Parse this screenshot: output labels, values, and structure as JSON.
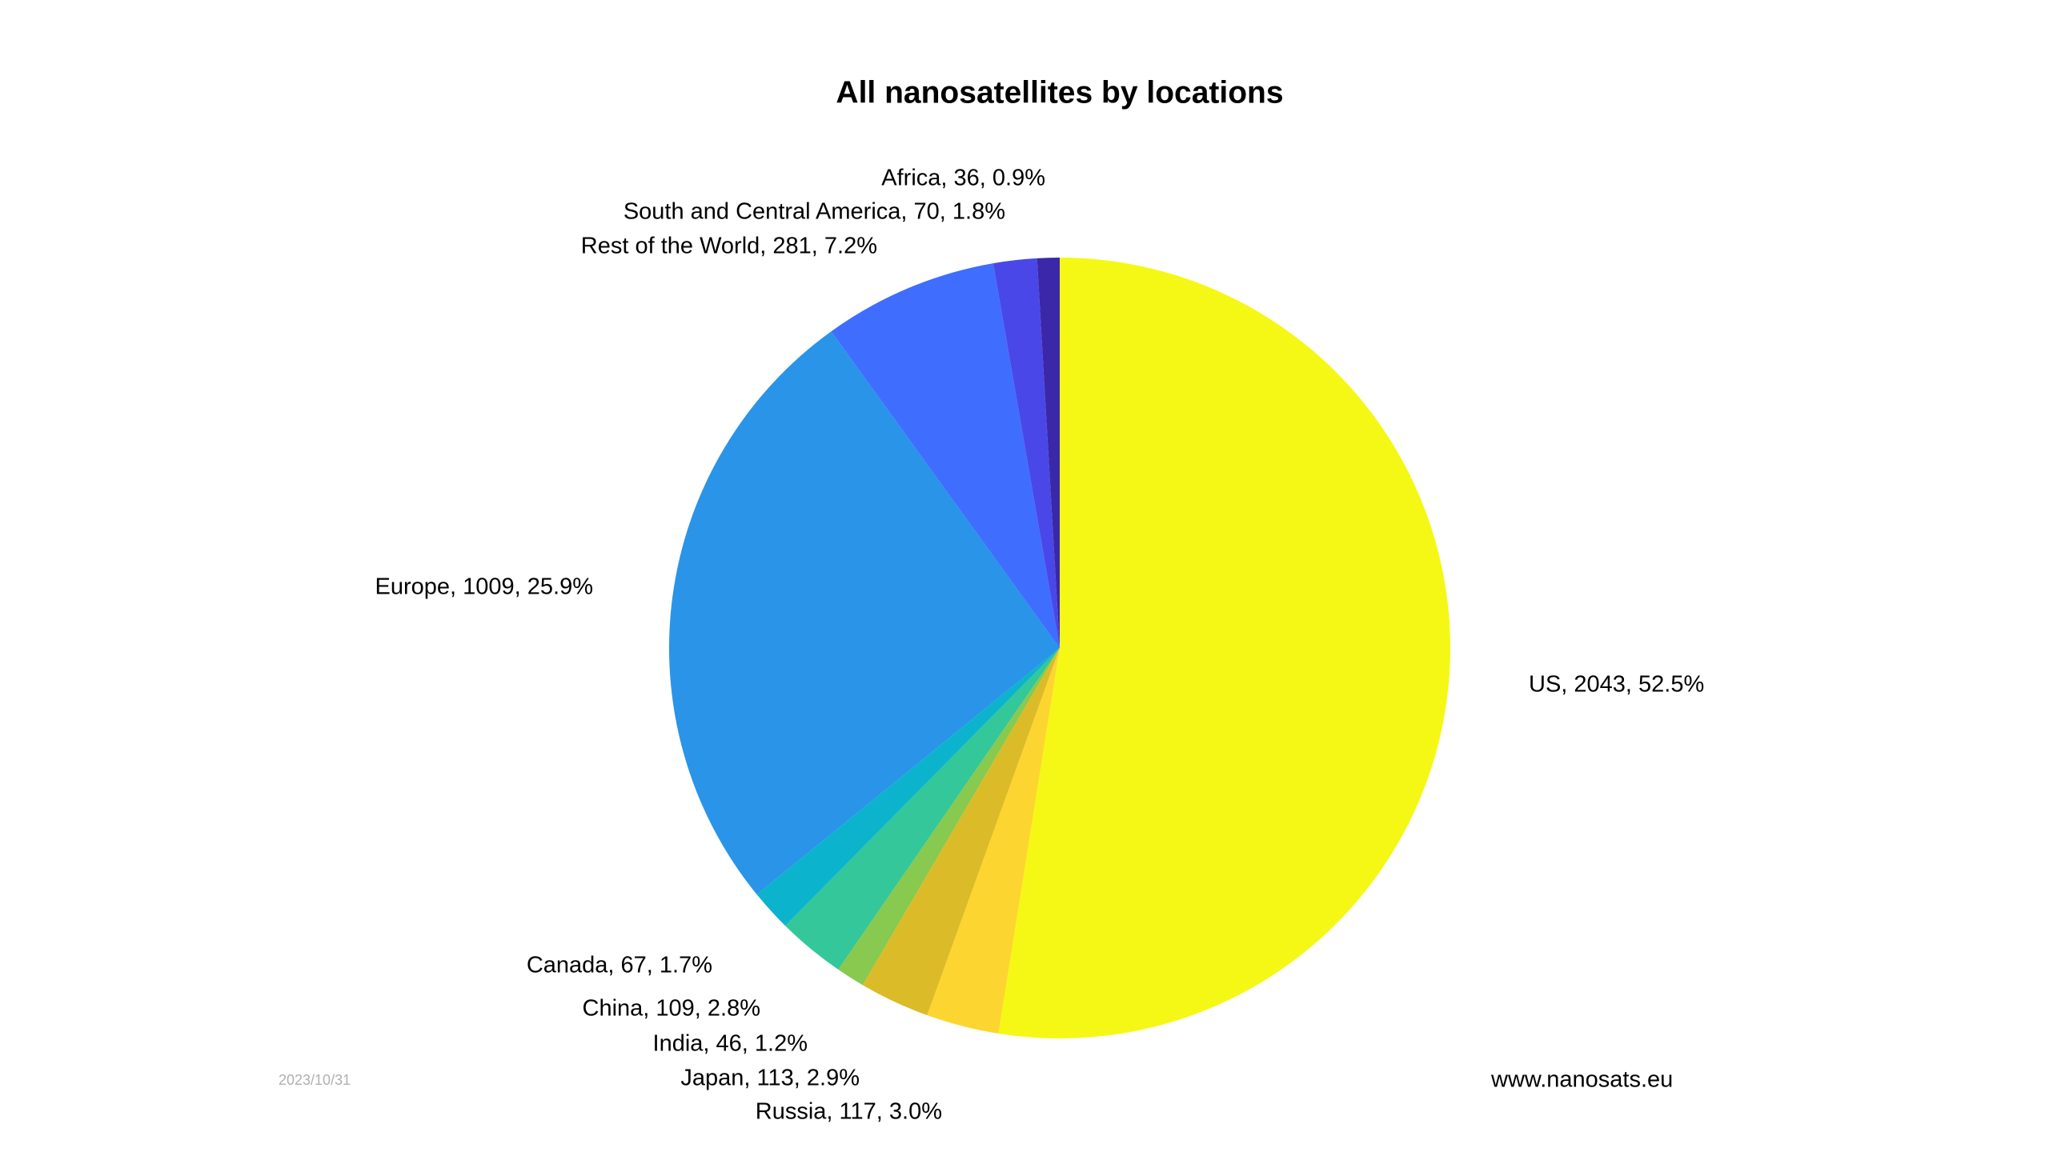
{
  "chart_data": {
    "type": "pie",
    "title": "All nanosatellites by locations",
    "values": [
      2043,
      117,
      113,
      46,
      109,
      67,
      1009,
      281,
      70,
      36
    ],
    "value_labels": [
      "US, 2043, 52.5%",
      "Russia, 117, 3.0%",
      "Japan, 113, 2.9%",
      "India, 46, 1.2%",
      "China, 109, 2.8%",
      "Canada, 67, 1.7%",
      "Europe, 1009, 25.9%",
      "Rest of the World, 281, 7.2%",
      "South and Central America, 70, 1.8%",
      "Africa, 36, 0.9%"
    ],
    "colors": [
      "#f5f814",
      "#fdd530",
      "#dcbb28",
      "#88c94f",
      "#33c79a",
      "#0cb3cd",
      "#2a94e8",
      "#3f6dfe",
      "#4a47e8",
      "#3a28a8"
    ],
    "date": "2023/10/31",
    "source": "www.nanosats.eu"
  }
}
